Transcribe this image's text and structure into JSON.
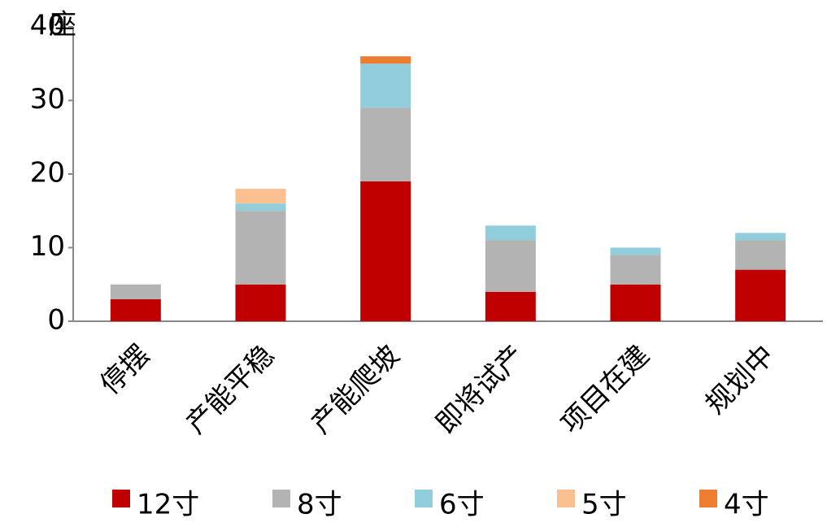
{
  "chart_data": {
    "type": "stacked-bar",
    "unit": "座",
    "categories": [
      "停摆",
      "产能平稳",
      "产能爬坡",
      "即将试产",
      "项目在建",
      "规划中"
    ],
    "series": [
      {
        "name": "12寸",
        "color": "#c00000",
        "values": [
          3,
          5,
          19,
          4,
          5,
          7
        ]
      },
      {
        "name": "8寸",
        "color": "#b3b3b3",
        "values": [
          2,
          10,
          10,
          7,
          4,
          4
        ]
      },
      {
        "name": "6寸",
        "color": "#92cddc",
        "values": [
          0,
          1,
          6,
          2,
          1,
          1
        ]
      },
      {
        "name": "5寸",
        "color": "#fac090",
        "values": [
          0,
          2,
          0,
          0,
          0,
          0
        ]
      },
      {
        "name": "4寸",
        "color": "#ed7d31",
        "values": [
          0,
          0,
          1,
          0,
          0,
          0
        ]
      }
    ],
    "ylim": [
      0,
      40
    ],
    "yticks": [
      0,
      10,
      20,
      30,
      40
    ]
  }
}
